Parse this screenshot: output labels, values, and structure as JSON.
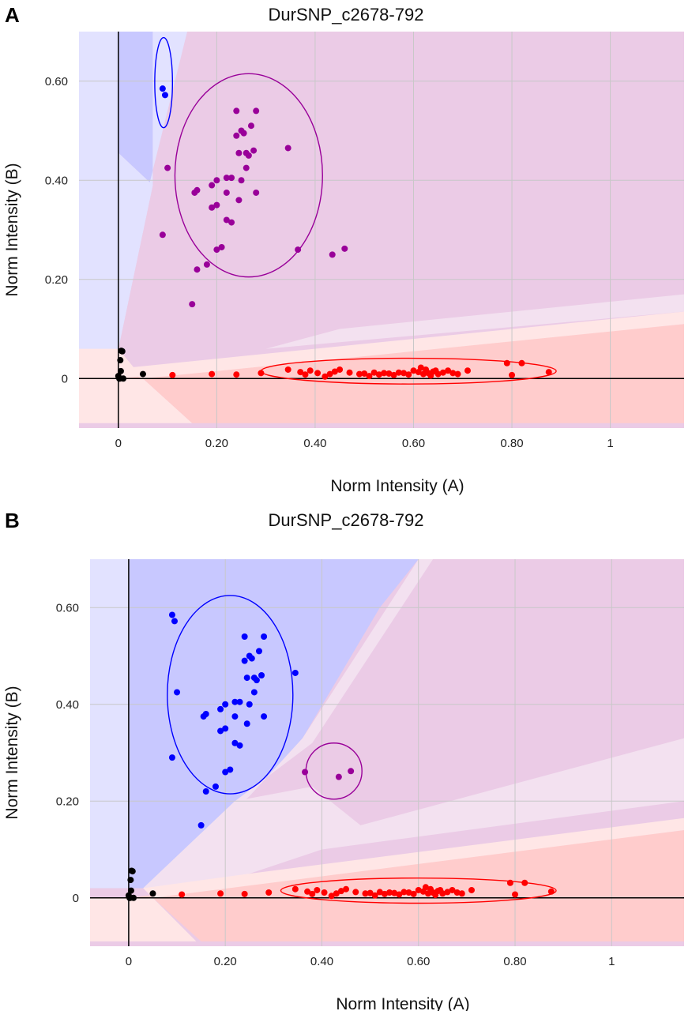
{
  "panels": [
    {
      "label": "A",
      "title": "DurSNP_c2678-792"
    },
    {
      "label": "B",
      "title": "DurSNP_c2678-792"
    }
  ],
  "colors": {
    "aa_cluster": "#ff0000",
    "ab_cluster_A": "#990099",
    "bb_cluster": "#0000ff",
    "no_call": "#000000",
    "region_blue": "#c8c8ff",
    "region_blue_light": "#e2e2ff",
    "region_purple": "#ebcbe6",
    "region_purple_light": "#f3e1f0",
    "region_red": "#ffcccc",
    "region_red_light": "#ffe6e6"
  },
  "chart_data": [
    {
      "type": "scatter",
      "title": "DurSNP_c2678-792",
      "xlabel": "Norm Intensity (A)",
      "ylabel": "Norm Intensity (B)",
      "xlim": [
        -0.08,
        1.15
      ],
      "ylim": [
        -0.1,
        0.7
      ],
      "x_ticks": [
        {
          "value": 0,
          "label": "0"
        },
        {
          "value": 0.2,
          "label": "0.20"
        },
        {
          "value": 0.4,
          "label": "0.40"
        },
        {
          "value": 0.6,
          "label": "0.60"
        },
        {
          "value": 0.8,
          "label": "0.80"
        },
        {
          "value": 1.0,
          "label": "1"
        }
      ],
      "y_ticks": [
        {
          "value": 0,
          "label": "0"
        },
        {
          "value": 0.2,
          "label": "0.20"
        },
        {
          "value": 0.4,
          "label": "0.40"
        },
        {
          "value": 0.6,
          "label": "0.60"
        }
      ],
      "grid": true,
      "series": [
        {
          "cluster": "BB",
          "color": "#0000ff",
          "x": [
            0.09,
            0.095
          ],
          "y": [
            0.585,
            0.572
          ]
        },
        {
          "cluster": "AB",
          "color": "#990099",
          "x": [
            0.1,
            0.09,
            0.15,
            0.16,
            0.18,
            0.16,
            0.155,
            0.2,
            0.21,
            0.2,
            0.22,
            0.23,
            0.22,
            0.23,
            0.19,
            0.24,
            0.25,
            0.2,
            0.19,
            0.22,
            0.24,
            0.255,
            0.26,
            0.245,
            0.265,
            0.275,
            0.28,
            0.27,
            0.26,
            0.28,
            0.25,
            0.245,
            0.345,
            0.365,
            0.435,
            0.46
          ],
          "y": [
            0.425,
            0.29,
            0.15,
            0.22,
            0.23,
            0.38,
            0.375,
            0.26,
            0.265,
            0.4,
            0.405,
            0.405,
            0.32,
            0.315,
            0.39,
            0.54,
            0.5,
            0.35,
            0.345,
            0.375,
            0.49,
            0.495,
            0.455,
            0.455,
            0.45,
            0.46,
            0.54,
            0.51,
            0.425,
            0.375,
            0.4,
            0.36,
            0.465,
            0.26,
            0.25,
            0.262
          ]
        },
        {
          "cluster": "AA",
          "color": "#ff0000",
          "x": [
            0.11,
            0.19,
            0.24,
            0.29,
            0.345,
            0.37,
            0.38,
            0.39,
            0.405,
            0.42,
            0.43,
            0.44,
            0.45,
            0.47,
            0.49,
            0.5,
            0.51,
            0.52,
            0.53,
            0.54,
            0.55,
            0.56,
            0.57,
            0.58,
            0.59,
            0.6,
            0.61,
            0.615,
            0.62,
            0.625,
            0.63,
            0.635,
            0.64,
            0.645,
            0.65,
            0.66,
            0.67,
            0.68,
            0.69,
            0.71,
            0.79,
            0.8,
            0.82,
            0.875
          ],
          "y": [
            0.007,
            0.009,
            0.008,
            0.011,
            0.018,
            0.013,
            0.008,
            0.016,
            0.011,
            0.004,
            0.009,
            0.014,
            0.018,
            0.012,
            0.009,
            0.01,
            0.005,
            0.012,
            0.008,
            0.011,
            0.01,
            0.007,
            0.012,
            0.011,
            0.008,
            0.016,
            0.013,
            0.022,
            0.009,
            0.018,
            0.011,
            0.006,
            0.014,
            0.016,
            0.009,
            0.012,
            0.016,
            0.011,
            0.009,
            0.016,
            0.031,
            0.007,
            0.031,
            0.013
          ]
        },
        {
          "cluster": "No call",
          "color": "#000000",
          "x": [
            0,
            0.002,
            0.004,
            0.006,
            0.008,
            0.01,
            0.005,
            0.003,
            0.05
          ],
          "y": [
            0.005,
            0.0,
            0.037,
            0.056,
            0.055,
            0.0,
            0.015,
            0.0,
            0.009
          ]
        }
      ],
      "ellipses": [
        {
          "cluster": "BB",
          "color": "#0000ff",
          "cx": 0.092,
          "cy": 0.597,
          "rx": 0.018,
          "ry": 0.091
        },
        {
          "cluster": "AB",
          "color": "#990099",
          "cx": 0.265,
          "cy": 0.41,
          "rx": 0.15,
          "ry": 0.205
        },
        {
          "cluster": "AA",
          "color": "#ff0000",
          "cx": 0.59,
          "cy": 0.015,
          "rx": 0.3,
          "ry": 0.026
        }
      ]
    },
    {
      "type": "scatter",
      "title": "DurSNP_c2678-792",
      "xlabel": "Norm Intensity (A)",
      "ylabel": "Norm Intensity (B)",
      "xlim": [
        -0.08,
        1.15
      ],
      "ylim": [
        -0.1,
        0.7
      ],
      "x_ticks": [
        {
          "value": 0,
          "label": "0"
        },
        {
          "value": 0.2,
          "label": "0.20"
        },
        {
          "value": 0.4,
          "label": "0.40"
        },
        {
          "value": 0.6,
          "label": "0.60"
        },
        {
          "value": 0.8,
          "label": "0.80"
        },
        {
          "value": 1.0,
          "label": "1"
        }
      ],
      "y_ticks": [
        {
          "value": 0,
          "label": "0"
        },
        {
          "value": 0.2,
          "label": "0.20"
        },
        {
          "value": 0.4,
          "label": "0.40"
        },
        {
          "value": 0.6,
          "label": "0.60"
        }
      ],
      "grid": true,
      "series": [
        {
          "cluster": "BB",
          "color": "#0000ff",
          "x": [
            0.09,
            0.095,
            0.1,
            0.09,
            0.15,
            0.16,
            0.18,
            0.16,
            0.155,
            0.2,
            0.21,
            0.2,
            0.22,
            0.23,
            0.22,
            0.23,
            0.19,
            0.24,
            0.25,
            0.2,
            0.19,
            0.22,
            0.24,
            0.255,
            0.26,
            0.245,
            0.265,
            0.275,
            0.28,
            0.27,
            0.26,
            0.28,
            0.25,
            0.245,
            0.345
          ],
          "y": [
            0.585,
            0.572,
            0.425,
            0.29,
            0.15,
            0.22,
            0.23,
            0.38,
            0.375,
            0.26,
            0.265,
            0.4,
            0.405,
            0.405,
            0.32,
            0.315,
            0.39,
            0.54,
            0.5,
            0.35,
            0.345,
            0.375,
            0.49,
            0.495,
            0.455,
            0.455,
            0.45,
            0.46,
            0.54,
            0.51,
            0.425,
            0.375,
            0.4,
            0.36,
            0.465
          ]
        },
        {
          "cluster": "AB",
          "color": "#990099",
          "x": [
            0.365,
            0.435,
            0.46
          ],
          "y": [
            0.26,
            0.25,
            0.262
          ]
        },
        {
          "cluster": "AA",
          "color": "#ff0000",
          "x": [
            0.11,
            0.19,
            0.24,
            0.29,
            0.345,
            0.37,
            0.38,
            0.39,
            0.405,
            0.42,
            0.43,
            0.44,
            0.45,
            0.47,
            0.49,
            0.5,
            0.51,
            0.52,
            0.53,
            0.54,
            0.55,
            0.56,
            0.57,
            0.58,
            0.59,
            0.6,
            0.61,
            0.615,
            0.62,
            0.625,
            0.63,
            0.635,
            0.64,
            0.645,
            0.65,
            0.66,
            0.67,
            0.68,
            0.69,
            0.71,
            0.79,
            0.8,
            0.82,
            0.875
          ],
          "y": [
            0.007,
            0.009,
            0.008,
            0.011,
            0.018,
            0.013,
            0.008,
            0.016,
            0.011,
            0.004,
            0.009,
            0.014,
            0.018,
            0.012,
            0.009,
            0.01,
            0.005,
            0.012,
            0.008,
            0.011,
            0.01,
            0.007,
            0.012,
            0.011,
            0.008,
            0.016,
            0.013,
            0.022,
            0.009,
            0.018,
            0.011,
            0.006,
            0.014,
            0.016,
            0.009,
            0.012,
            0.016,
            0.011,
            0.009,
            0.016,
            0.031,
            0.007,
            0.031,
            0.013
          ]
        },
        {
          "cluster": "No call",
          "color": "#000000",
          "x": [
            0,
            0.002,
            0.004,
            0.006,
            0.008,
            0.01,
            0.005,
            0.003,
            0.05
          ],
          "y": [
            0.005,
            0.0,
            0.037,
            0.056,
            0.055,
            0.0,
            0.015,
            0.0,
            0.009
          ]
        }
      ],
      "ellipses": [
        {
          "cluster": "BB",
          "color": "#0000ff",
          "cx": 0.21,
          "cy": 0.42,
          "rx": 0.13,
          "ry": 0.205
        },
        {
          "cluster": "AB",
          "color": "#990099",
          "cx": 0.425,
          "cy": 0.262,
          "rx": 0.058,
          "ry": 0.058
        },
        {
          "cluster": "AA",
          "color": "#ff0000",
          "cx": 0.6,
          "cy": 0.015,
          "rx": 0.285,
          "ry": 0.026
        }
      ]
    }
  ]
}
